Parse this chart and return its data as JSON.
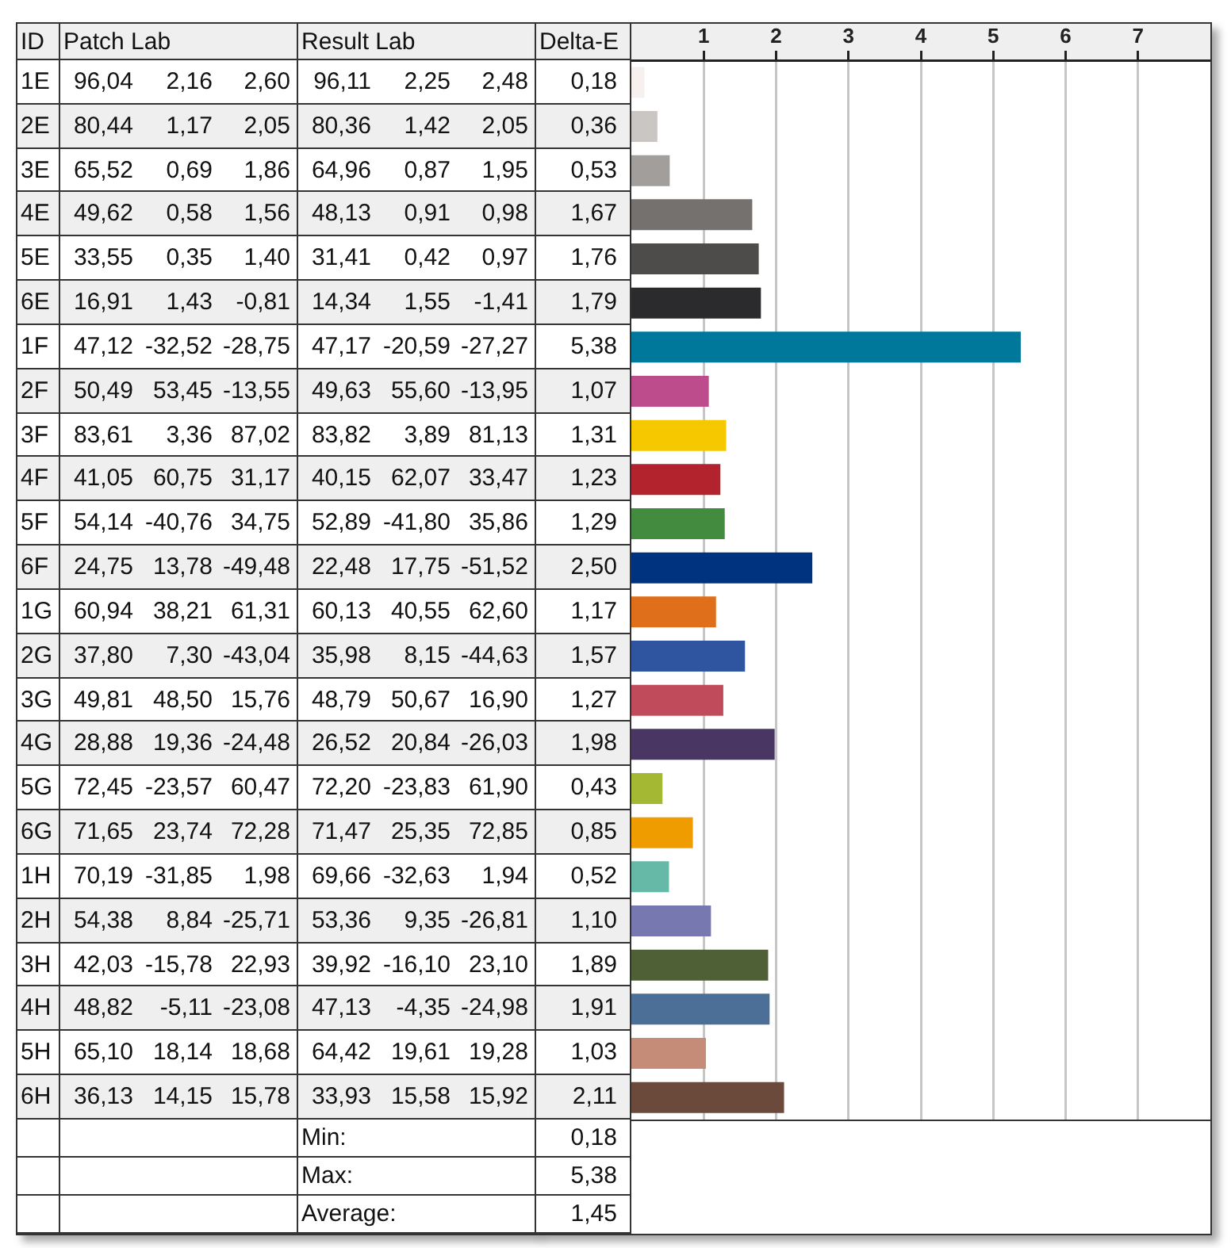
{
  "chart_data": [
    {
      "type": "heatmap",
      "ylabel": "ID",
      "categories": [
        "Patch Lab",
        null,
        null,
        "Result Lab",
        null,
        null
      ],
      "y_categories": [
        "1E",
        "2E",
        "3E",
        "4E",
        "5E",
        "6E",
        "1F",
        "2F",
        "3F",
        "4F",
        "5F",
        "6F",
        "1G",
        "2G",
        "3G",
        "4G",
        "5G",
        "6G",
        "1H",
        "2H",
        "3H",
        "4H",
        "5H",
        "6H"
      ],
      "cells": [
        [
          96.04,
          2.16,
          2.6,
          96.11,
          2.25,
          2.48
        ],
        [
          80.44,
          1.17,
          2.05,
          80.36,
          1.42,
          2.05
        ],
        [
          65.52,
          0.69,
          1.86,
          64.96,
          0.87,
          1.95
        ],
        [
          49.62,
          0.58,
          1.56,
          48.13,
          0.91,
          0.98
        ],
        [
          33.55,
          0.35,
          1.4,
          31.41,
          0.42,
          0.97
        ],
        [
          16.91,
          1.43,
          -0.81,
          14.34,
          1.55,
          -1.41
        ],
        [
          47.12,
          -32.52,
          -28.75,
          47.17,
          -20.59,
          -27.27
        ],
        [
          50.49,
          53.45,
          -13.55,
          49.63,
          55.6,
          -13.95
        ],
        [
          83.61,
          3.36,
          87.02,
          83.82,
          3.89,
          81.13
        ],
        [
          41.05,
          60.75,
          31.17,
          40.15,
          62.07,
          33.47
        ],
        [
          54.14,
          -40.76,
          34.75,
          52.89,
          -41.8,
          35.86
        ],
        [
          24.75,
          13.78,
          -49.48,
          22.48,
          17.75,
          -51.52
        ],
        [
          60.94,
          38.21,
          61.31,
          60.13,
          40.55,
          62.6
        ],
        [
          37.8,
          7.3,
          -43.04,
          35.98,
          8.15,
          -44.63
        ],
        [
          49.81,
          48.5,
          15.76,
          48.79,
          50.67,
          16.9
        ],
        [
          28.88,
          19.36,
          -24.48,
          26.52,
          20.84,
          -26.03
        ],
        [
          72.45,
          -23.57,
          60.47,
          72.2,
          -23.83,
          61.9
        ],
        [
          71.65,
          23.74,
          72.28,
          71.47,
          25.35,
          72.85
        ],
        [
          70.19,
          -31.85,
          1.98,
          69.66,
          -32.63,
          1.94
        ],
        [
          54.38,
          8.84,
          -25.71,
          53.36,
          9.35,
          -26.81
        ],
        [
          42.03,
          -15.78,
          22.93,
          39.92,
          -16.1,
          23.1
        ],
        [
          48.82,
          -5.11,
          -23.08,
          47.13,
          -4.35,
          -24.98
        ],
        [
          65.1,
          18.14,
          18.68,
          64.42,
          19.61,
          19.28
        ],
        [
          36.13,
          14.15,
          15.78,
          33.93,
          15.58,
          15.92
        ]
      ],
      "cell_labels": [
        [
          "96,04",
          "2,16",
          "2,60",
          "96,11",
          "2,25",
          "2,48"
        ],
        [
          "80,44",
          "1,17",
          "2,05",
          "80,36",
          "1,42",
          "2,05"
        ],
        [
          "65,52",
          "0,69",
          "1,86",
          "64,96",
          "0,87",
          "1,95"
        ],
        [
          "49,62",
          "0,58",
          "1,56",
          "48,13",
          "0,91",
          "0,98"
        ],
        [
          "33,55",
          "0,35",
          "1,40",
          "31,41",
          "0,42",
          "0,97"
        ],
        [
          "16,91",
          "1,43",
          "-0,81",
          "14,34",
          "1,55",
          "-1,41"
        ],
        [
          "47,12",
          "-32,52",
          "-28,75",
          "47,17",
          "-20,59",
          "-27,27"
        ],
        [
          "50,49",
          "53,45",
          "-13,55",
          "49,63",
          "55,60",
          "-13,95"
        ],
        [
          "83,61",
          "3,36",
          "87,02",
          "83,82",
          "3,89",
          "81,13"
        ],
        [
          "41,05",
          "60,75",
          "31,17",
          "40,15",
          "62,07",
          "33,47"
        ],
        [
          "54,14",
          "-40,76",
          "34,75",
          "52,89",
          "-41,80",
          "35,86"
        ],
        [
          "24,75",
          "13,78",
          "-49,48",
          "22,48",
          "17,75",
          "-51,52"
        ],
        [
          "60,94",
          "38,21",
          "61,31",
          "60,13",
          "40,55",
          "62,60"
        ],
        [
          "37,80",
          "7,30",
          "-43,04",
          "35,98",
          "8,15",
          "-44,63"
        ],
        [
          "49,81",
          "48,50",
          "15,76",
          "48,79",
          "50,67",
          "16,90"
        ],
        [
          "28,88",
          "19,36",
          "-24,48",
          "26,52",
          "20,84",
          "-26,03"
        ],
        [
          "72,45",
          "-23,57",
          "60,47",
          "72,20",
          "-23,83",
          "61,90"
        ],
        [
          "71,65",
          "23,74",
          "72,28",
          "71,47",
          "25,35",
          "72,85"
        ],
        [
          "70,19",
          "-31,85",
          "1,98",
          "69,66",
          "-32,63",
          "1,94"
        ],
        [
          "54,38",
          "8,84",
          "-25,71",
          "53,36",
          "9,35",
          "-26,81"
        ],
        [
          "42,03",
          "-15,78",
          "22,93",
          "39,92",
          "-16,10",
          "23,10"
        ],
        [
          "48,82",
          "-5,11",
          "-23,08",
          "47,13",
          "-4,35",
          "-24,98"
        ],
        [
          "65,10",
          "18,14",
          "18,68",
          "64,42",
          "19,61",
          "19,28"
        ],
        [
          "36,13",
          "14,15",
          "15,78",
          "33,93",
          "15,58",
          "15,92"
        ]
      ],
      "annotations": [
        "Min:",
        "Max:",
        "Average:"
      ]
    },
    {
      "type": "bar",
      "orientation": "horizontal",
      "xlabel": "Delta-E",
      "categories": [
        null,
        null,
        null,
        null,
        null,
        null,
        null,
        null,
        null,
        null,
        null,
        null,
        null,
        null,
        null,
        null,
        null,
        null,
        null,
        null,
        null,
        null,
        null,
        null
      ],
      "values": [
        0.18,
        0.36,
        0.53,
        1.67,
        1.76,
        1.79,
        5.38,
        1.07,
        1.31,
        1.23,
        1.29,
        2.5,
        1.17,
        1.57,
        1.27,
        1.98,
        0.43,
        0.85,
        0.52,
        1.1,
        1.89,
        1.91,
        1.03,
        2.11
      ],
      "colors": [
        "#f6f1ee",
        "#c9c6c4",
        "#a19e9b",
        "#74716f",
        "#4d4c4b",
        "#2b2a2c",
        "#00789b",
        "#bc4c8b",
        "#f6c800",
        "#b2232e",
        "#438b3e",
        "#00337f",
        "#df6f1a",
        "#2f55a0",
        "#c04b5a",
        "#4a3662",
        "#a5b834",
        "#ef9c00",
        "#67b9a7",
        "#7878b0",
        "#4f6036",
        "#4b6f97",
        "#c58d77",
        "#6b4a3b"
      ],
      "value_labels": [
        "0,18",
        "0,36",
        "0,53",
        "1,67",
        "1,76",
        "1,79",
        "5,38",
        "1,07",
        "1,31",
        "1,23",
        "1,29",
        "2,50",
        "1,17",
        "1,57",
        "1,27",
        "1,98",
        "0,43",
        "0,85",
        "0,52",
        "1,10",
        "1,89",
        "1,91",
        "1,03",
        "2,11"
      ],
      "xlim": [
        0,
        8
      ],
      "xticks": [
        1,
        2,
        3,
        4,
        5,
        6,
        7
      ],
      "grid": "x",
      "annotations": [
        "0,18",
        "5,38",
        "1,45"
      ]
    }
  ]
}
